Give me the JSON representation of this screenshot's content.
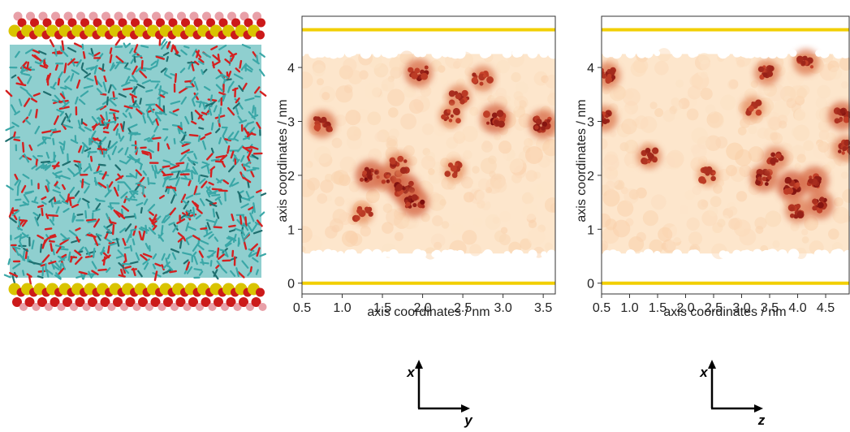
{
  "colors": {
    "slab_line": "#f2cf00",
    "heat_light": "#fde6cc",
    "heat_dark": "#7a0c0c",
    "slab_si": "#d9c400",
    "slab_o": "#cc1a1a",
    "slab_h": "#e8a0a8",
    "solvent_c": "#3aa7a7",
    "solvent_o": "#d42020"
  },
  "panels": {
    "molecular_snapshot": {
      "icon": "silica-slab-water-snapshot"
    },
    "direction_indicators": [
      {
        "vertical": "x",
        "horizontal": "y"
      },
      {
        "vertical": "x",
        "horizontal": "z"
      }
    ]
  },
  "chart_data": [
    {
      "type": "heatmap",
      "xlabel": "axis coordinates / nm",
      "ylabel": "axis coordinates / nm",
      "xlim": [
        0.5,
        3.65
      ],
      "ylim": [
        -0.2,
        4.95
      ],
      "x_ticks": [
        "0.5",
        "1.0",
        "1.5",
        "2.0",
        "2.5",
        "3.0",
        "3.5"
      ],
      "y_ticks": [
        "0",
        "1",
        "2",
        "3",
        "4"
      ],
      "tick_values_x": [
        0.5,
        1.0,
        1.5,
        2.0,
        2.5,
        3.0,
        3.5
      ],
      "tick_values_y": [
        0,
        1,
        2,
        3,
        4
      ],
      "density_region": {
        "x": [
          0.5,
          3.65
        ],
        "y": [
          0.55,
          4.25
        ]
      },
      "slab_lines_y": [
        0.0,
        4.7
      ],
      "hotspots": [
        {
          "x": 1.35,
          "y": 2.0,
          "intensity": 0.95
        },
        {
          "x": 1.6,
          "y": 1.95,
          "intensity": 0.8
        },
        {
          "x": 1.78,
          "y": 1.75,
          "intensity": 1.0
        },
        {
          "x": 1.9,
          "y": 1.5,
          "intensity": 0.9
        },
        {
          "x": 1.7,
          "y": 2.2,
          "intensity": 0.55
        },
        {
          "x": 0.75,
          "y": 2.95,
          "intensity": 0.75
        },
        {
          "x": 1.95,
          "y": 3.9,
          "intensity": 0.8
        },
        {
          "x": 2.75,
          "y": 3.8,
          "intensity": 0.6
        },
        {
          "x": 2.45,
          "y": 3.45,
          "intensity": 0.55
        },
        {
          "x": 2.9,
          "y": 3.05,
          "intensity": 0.9
        },
        {
          "x": 3.5,
          "y": 2.95,
          "intensity": 0.85
        },
        {
          "x": 2.35,
          "y": 3.1,
          "intensity": 0.45
        },
        {
          "x": 1.25,
          "y": 1.3,
          "intensity": 0.35
        },
        {
          "x": 2.4,
          "y": 2.1,
          "intensity": 0.35
        }
      ]
    },
    {
      "type": "heatmap",
      "xlabel": "axis coordinates / nm",
      "ylabel": "axis coordinates / nm",
      "xlim": [
        0.5,
        4.92
      ],
      "ylim": [
        -0.2,
        4.95
      ],
      "x_ticks": [
        "0.5",
        "1.0",
        "1.5",
        "2.0",
        "2.5",
        "3.0",
        "3.5",
        "4.0",
        "4.5"
      ],
      "y_ticks": [
        "0",
        "1",
        "2",
        "3",
        "4"
      ],
      "tick_values_x": [
        0.5,
        1.0,
        1.5,
        2.0,
        2.5,
        3.0,
        3.5,
        4.0,
        4.5
      ],
      "tick_values_y": [
        0,
        1,
        2,
        3,
        4
      ],
      "density_region": {
        "x": [
          0.5,
          4.92
        ],
        "y": [
          0.55,
          4.25
        ]
      },
      "slab_lines_y": [
        0.0,
        4.7
      ],
      "hotspots": [
        {
          "x": 3.4,
          "y": 1.95,
          "intensity": 0.8
        },
        {
          "x": 3.9,
          "y": 1.8,
          "intensity": 1.0
        },
        {
          "x": 4.3,
          "y": 1.9,
          "intensity": 0.85
        },
        {
          "x": 3.6,
          "y": 2.3,
          "intensity": 0.6
        },
        {
          "x": 4.0,
          "y": 1.35,
          "intensity": 0.6
        },
        {
          "x": 4.4,
          "y": 1.45,
          "intensity": 0.8
        },
        {
          "x": 4.8,
          "y": 3.1,
          "intensity": 0.85
        },
        {
          "x": 4.85,
          "y": 2.5,
          "intensity": 0.6
        },
        {
          "x": 3.45,
          "y": 3.9,
          "intensity": 0.6
        },
        {
          "x": 4.15,
          "y": 4.1,
          "intensity": 0.65
        },
        {
          "x": 0.6,
          "y": 3.85,
          "intensity": 0.7
        },
        {
          "x": 0.55,
          "y": 3.05,
          "intensity": 0.65
        },
        {
          "x": 1.35,
          "y": 2.35,
          "intensity": 0.55
        },
        {
          "x": 3.2,
          "y": 3.25,
          "intensity": 0.45
        },
        {
          "x": 2.4,
          "y": 2.0,
          "intensity": 0.35
        }
      ]
    }
  ]
}
